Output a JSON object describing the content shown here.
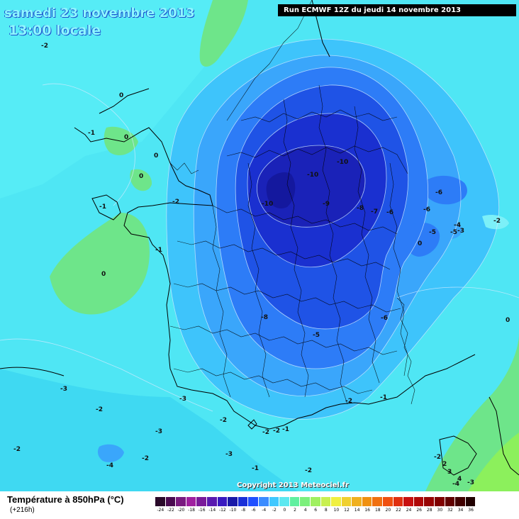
{
  "header": {
    "date": "samedi 23 novembre 2013",
    "time": "13:00 locale",
    "run": "Run ECMWF 12Z du jeudi 14 novembre 2013"
  },
  "footer": {
    "copyright": "Copyright 2013 Meteociel.fr",
    "legend_title": "Température à 850hPa (°C)",
    "legend_sub": "(+216h)"
  },
  "colors": {
    "ocean_background": "#4fe6f4",
    "warm_zone": "#6ee58a",
    "cold_core": "#1a1fb8"
  },
  "legend": {
    "labels": [
      "-24",
      "-22",
      "-20",
      "-18",
      "-16",
      "-14",
      "-12",
      "-10",
      "-8",
      "-6",
      "-4",
      "-2",
      "0",
      "2",
      "4",
      "6",
      "8",
      "10",
      "12",
      "14",
      "16",
      "18",
      "20",
      "22",
      "24",
      "26",
      "28",
      "30",
      "32",
      "34",
      "36"
    ],
    "colors": [
      "#2a0a2a",
      "#4a0a50",
      "#7a1a80",
      "#a020a0",
      "#7a1a9a",
      "#5a1ab0",
      "#3a1ac0",
      "#1a1aa8",
      "#1a30d8",
      "#2050ff",
      "#3c8cff",
      "#40c8ff",
      "#5ce8f0",
      "#60f0a0",
      "#7cf07c",
      "#a0f060",
      "#c8f050",
      "#f0f040",
      "#f0d030",
      "#f0b020",
      "#f09010",
      "#f07010",
      "#f05010",
      "#e03010",
      "#c81010",
      "#b00808",
      "#980404",
      "#800000",
      "#600000",
      "#400000",
      "#200000"
    ]
  },
  "isotherm_labels": [
    "-2",
    "0",
    "0",
    "0",
    "0",
    "0",
    "-1",
    "-1",
    "-2",
    "-1",
    "0",
    "-10",
    "-10",
    "-10",
    "-9",
    "-8",
    "-7",
    "-6",
    "-6",
    "-5",
    "-6",
    "-5",
    "-4",
    "-3",
    "-2",
    "-8",
    "-6",
    "-5",
    "0",
    "-3",
    "-2",
    "-3",
    "-3",
    "-2",
    "-2",
    "-4",
    "-2",
    "-3",
    "-1",
    "-2",
    "-2",
    "-1",
    "-2",
    "-2",
    "-1",
    "-2",
    "-4",
    "-3",
    "2",
    "3",
    "4"
  ]
}
